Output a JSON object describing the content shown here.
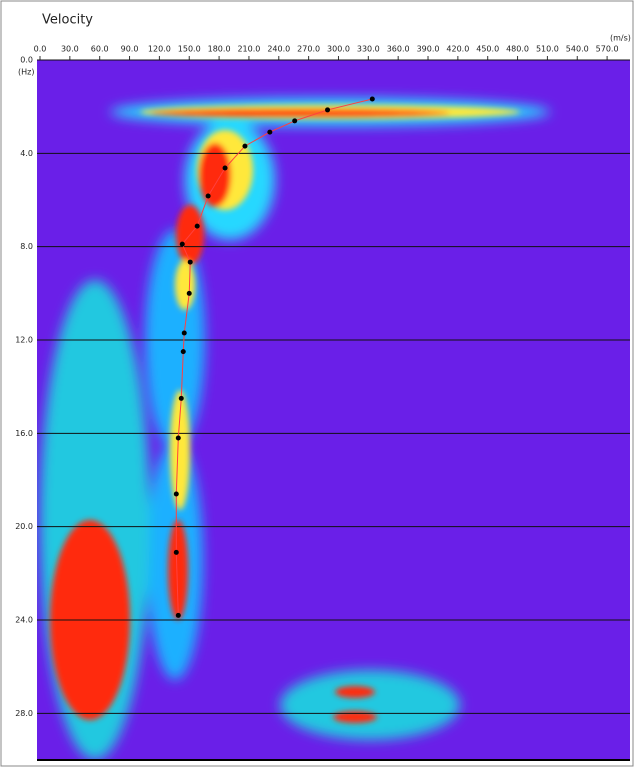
{
  "chart_data": {
    "type": "scatter",
    "title": "Velocity",
    "x_unit": "(m/s)",
    "y_unit": "(Hz)",
    "xlim": [
      0,
      590
    ],
    "ylim": [
      0,
      30
    ],
    "y_inverted": true,
    "xticks": [
      {
        "value": 0,
        "label": "0.0"
      },
      {
        "value": 30,
        "label": "30.0"
      },
      {
        "value": 60,
        "label": "60.0"
      },
      {
        "value": 90,
        "label": "90.0"
      },
      {
        "value": 120,
        "label": "120.0"
      },
      {
        "value": 150,
        "label": "150.0"
      },
      {
        "value": 180,
        "label": "180.0"
      },
      {
        "value": 210,
        "label": "210.0"
      },
      {
        "value": 240,
        "label": "240.0"
      },
      {
        "value": 270,
        "label": "270.0"
      },
      {
        "value": 300,
        "label": "300.0"
      },
      {
        "value": 330,
        "label": "330.0"
      },
      {
        "value": 360,
        "label": "360.0"
      },
      {
        "value": 390,
        "label": "390.0"
      },
      {
        "value": 420,
        "label": "420.0"
      },
      {
        "value": 450,
        "label": "450.0"
      },
      {
        "value": 480,
        "label": "480.0"
      },
      {
        "value": 510,
        "label": "510.0"
      },
      {
        "value": 540,
        "label": "540.0"
      },
      {
        "value": 570,
        "label": "570.0"
      }
    ],
    "yticks": [
      {
        "value": 0,
        "label": "0.0"
      },
      {
        "value": 4,
        "label": "4.0"
      },
      {
        "value": 8,
        "label": "8.0"
      },
      {
        "value": 12,
        "label": "12.0"
      },
      {
        "value": 16,
        "label": "16.0"
      },
      {
        "value": 20,
        "label": "20.0"
      },
      {
        "value": 24,
        "label": "24.0"
      },
      {
        "value": 28,
        "label": "28.0"
      }
    ],
    "grid": true,
    "series": [
      {
        "color": "#000000",
        "line_color": "#ff4040",
        "x": [
          334,
          289,
          256,
          231,
          206,
          186,
          169,
          158,
          143,
          151,
          150,
          145,
          144,
          142,
          139,
          137,
          137,
          139
        ],
        "values": [
          1.67,
          2.14,
          2.61,
          3.09,
          3.69,
          4.63,
          5.83,
          7.12,
          7.89,
          8.66,
          10.0,
          11.7,
          12.5,
          14.5,
          16.2,
          18.6,
          21.1,
          23.8
        ]
      }
    ]
  }
}
